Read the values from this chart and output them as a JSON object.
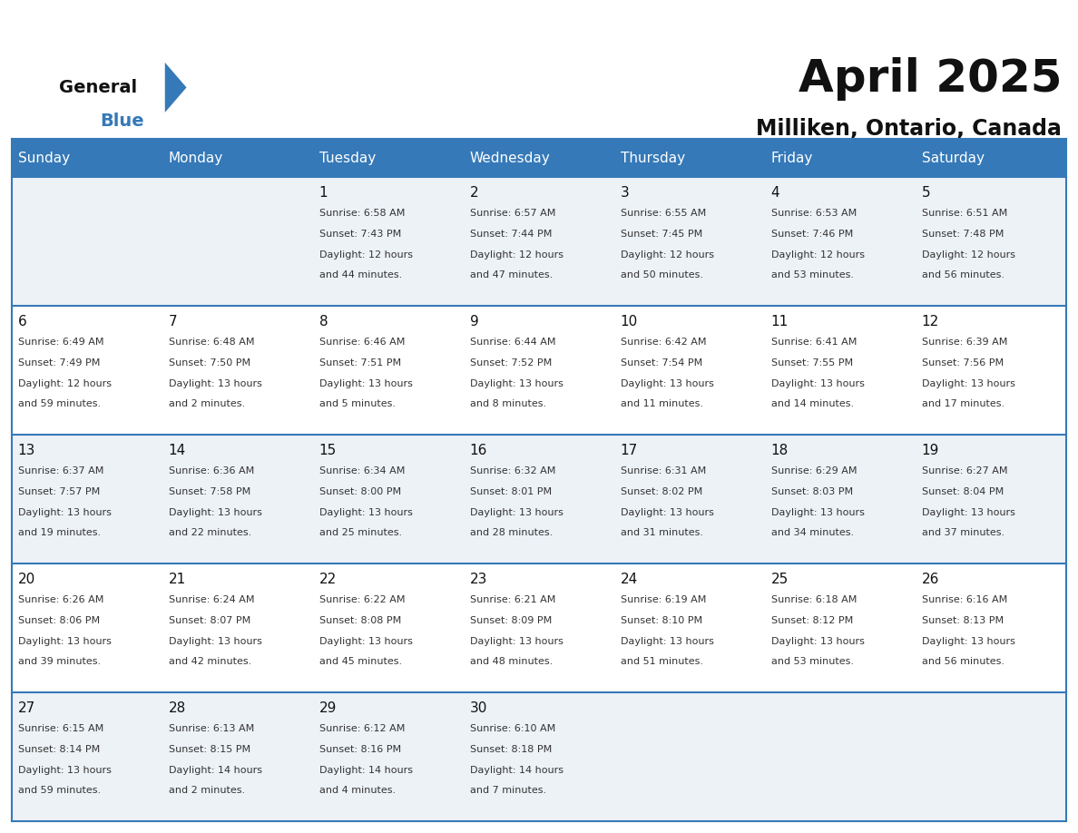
{
  "title": "April 2025",
  "subtitle": "Milliken, Ontario, Canada",
  "header_color": "#3579b8",
  "header_text_color": "#ffffff",
  "bg_color": "#ffffff",
  "cell_bg_even": "#edf2f7",
  "cell_bg_odd": "#ffffff",
  "border_color": "#3579b8",
  "day_names": [
    "Sunday",
    "Monday",
    "Tuesday",
    "Wednesday",
    "Thursday",
    "Friday",
    "Saturday"
  ],
  "days": [
    {
      "day": null,
      "col": 0,
      "row": 0,
      "sunrise": null,
      "sunset": null,
      "daylight": null
    },
    {
      "day": null,
      "col": 1,
      "row": 0,
      "sunrise": null,
      "sunset": null,
      "daylight": null
    },
    {
      "day": 1,
      "col": 2,
      "row": 0,
      "sunrise": "6:58 AM",
      "sunset": "7:43 PM",
      "daylight": "12 hours and 44 minutes."
    },
    {
      "day": 2,
      "col": 3,
      "row": 0,
      "sunrise": "6:57 AM",
      "sunset": "7:44 PM",
      "daylight": "12 hours and 47 minutes."
    },
    {
      "day": 3,
      "col": 4,
      "row": 0,
      "sunrise": "6:55 AM",
      "sunset": "7:45 PM",
      "daylight": "12 hours and 50 minutes."
    },
    {
      "day": 4,
      "col": 5,
      "row": 0,
      "sunrise": "6:53 AM",
      "sunset": "7:46 PM",
      "daylight": "12 hours and 53 minutes."
    },
    {
      "day": 5,
      "col": 6,
      "row": 0,
      "sunrise": "6:51 AM",
      "sunset": "7:48 PM",
      "daylight": "12 hours and 56 minutes."
    },
    {
      "day": 6,
      "col": 0,
      "row": 1,
      "sunrise": "6:49 AM",
      "sunset": "7:49 PM",
      "daylight": "12 hours and 59 minutes."
    },
    {
      "day": 7,
      "col": 1,
      "row": 1,
      "sunrise": "6:48 AM",
      "sunset": "7:50 PM",
      "daylight": "13 hours and 2 minutes."
    },
    {
      "day": 8,
      "col": 2,
      "row": 1,
      "sunrise": "6:46 AM",
      "sunset": "7:51 PM",
      "daylight": "13 hours and 5 minutes."
    },
    {
      "day": 9,
      "col": 3,
      "row": 1,
      "sunrise": "6:44 AM",
      "sunset": "7:52 PM",
      "daylight": "13 hours and 8 minutes."
    },
    {
      "day": 10,
      "col": 4,
      "row": 1,
      "sunrise": "6:42 AM",
      "sunset": "7:54 PM",
      "daylight": "13 hours and 11 minutes."
    },
    {
      "day": 11,
      "col": 5,
      "row": 1,
      "sunrise": "6:41 AM",
      "sunset": "7:55 PM",
      "daylight": "13 hours and 14 minutes."
    },
    {
      "day": 12,
      "col": 6,
      "row": 1,
      "sunrise": "6:39 AM",
      "sunset": "7:56 PM",
      "daylight": "13 hours and 17 minutes."
    },
    {
      "day": 13,
      "col": 0,
      "row": 2,
      "sunrise": "6:37 AM",
      "sunset": "7:57 PM",
      "daylight": "13 hours and 19 minutes."
    },
    {
      "day": 14,
      "col": 1,
      "row": 2,
      "sunrise": "6:36 AM",
      "sunset": "7:58 PM",
      "daylight": "13 hours and 22 minutes."
    },
    {
      "day": 15,
      "col": 2,
      "row": 2,
      "sunrise": "6:34 AM",
      "sunset": "8:00 PM",
      "daylight": "13 hours and 25 minutes."
    },
    {
      "day": 16,
      "col": 3,
      "row": 2,
      "sunrise": "6:32 AM",
      "sunset": "8:01 PM",
      "daylight": "13 hours and 28 minutes."
    },
    {
      "day": 17,
      "col": 4,
      "row": 2,
      "sunrise": "6:31 AM",
      "sunset": "8:02 PM",
      "daylight": "13 hours and 31 minutes."
    },
    {
      "day": 18,
      "col": 5,
      "row": 2,
      "sunrise": "6:29 AM",
      "sunset": "8:03 PM",
      "daylight": "13 hours and 34 minutes."
    },
    {
      "day": 19,
      "col": 6,
      "row": 2,
      "sunrise": "6:27 AM",
      "sunset": "8:04 PM",
      "daylight": "13 hours and 37 minutes."
    },
    {
      "day": 20,
      "col": 0,
      "row": 3,
      "sunrise": "6:26 AM",
      "sunset": "8:06 PM",
      "daylight": "13 hours and 39 minutes."
    },
    {
      "day": 21,
      "col": 1,
      "row": 3,
      "sunrise": "6:24 AM",
      "sunset": "8:07 PM",
      "daylight": "13 hours and 42 minutes."
    },
    {
      "day": 22,
      "col": 2,
      "row": 3,
      "sunrise": "6:22 AM",
      "sunset": "8:08 PM",
      "daylight": "13 hours and 45 minutes."
    },
    {
      "day": 23,
      "col": 3,
      "row": 3,
      "sunrise": "6:21 AM",
      "sunset": "8:09 PM",
      "daylight": "13 hours and 48 minutes."
    },
    {
      "day": 24,
      "col": 4,
      "row": 3,
      "sunrise": "6:19 AM",
      "sunset": "8:10 PM",
      "daylight": "13 hours and 51 minutes."
    },
    {
      "day": 25,
      "col": 5,
      "row": 3,
      "sunrise": "6:18 AM",
      "sunset": "8:12 PM",
      "daylight": "13 hours and 53 minutes."
    },
    {
      "day": 26,
      "col": 6,
      "row": 3,
      "sunrise": "6:16 AM",
      "sunset": "8:13 PM",
      "daylight": "13 hours and 56 minutes."
    },
    {
      "day": 27,
      "col": 0,
      "row": 4,
      "sunrise": "6:15 AM",
      "sunset": "8:14 PM",
      "daylight": "13 hours and 59 minutes."
    },
    {
      "day": 28,
      "col": 1,
      "row": 4,
      "sunrise": "6:13 AM",
      "sunset": "8:15 PM",
      "daylight": "14 hours and 2 minutes."
    },
    {
      "day": 29,
      "col": 2,
      "row": 4,
      "sunrise": "6:12 AM",
      "sunset": "8:16 PM",
      "daylight": "14 hours and 4 minutes."
    },
    {
      "day": 30,
      "col": 3,
      "row": 4,
      "sunrise": "6:10 AM",
      "sunset": "8:18 PM",
      "daylight": "14 hours and 7 minutes."
    },
    {
      "day": null,
      "col": 4,
      "row": 4,
      "sunrise": null,
      "sunset": null,
      "daylight": null
    },
    {
      "day": null,
      "col": 5,
      "row": 4,
      "sunrise": null,
      "sunset": null,
      "daylight": null
    },
    {
      "day": null,
      "col": 6,
      "row": 4,
      "sunrise": null,
      "sunset": null,
      "daylight": null
    }
  ],
  "logo_text1": "General",
  "logo_text2": "Blue",
  "title_fontsize": 36,
  "subtitle_fontsize": 17,
  "dayname_fontsize": 11,
  "daynum_fontsize": 11,
  "cell_text_fontsize": 8
}
